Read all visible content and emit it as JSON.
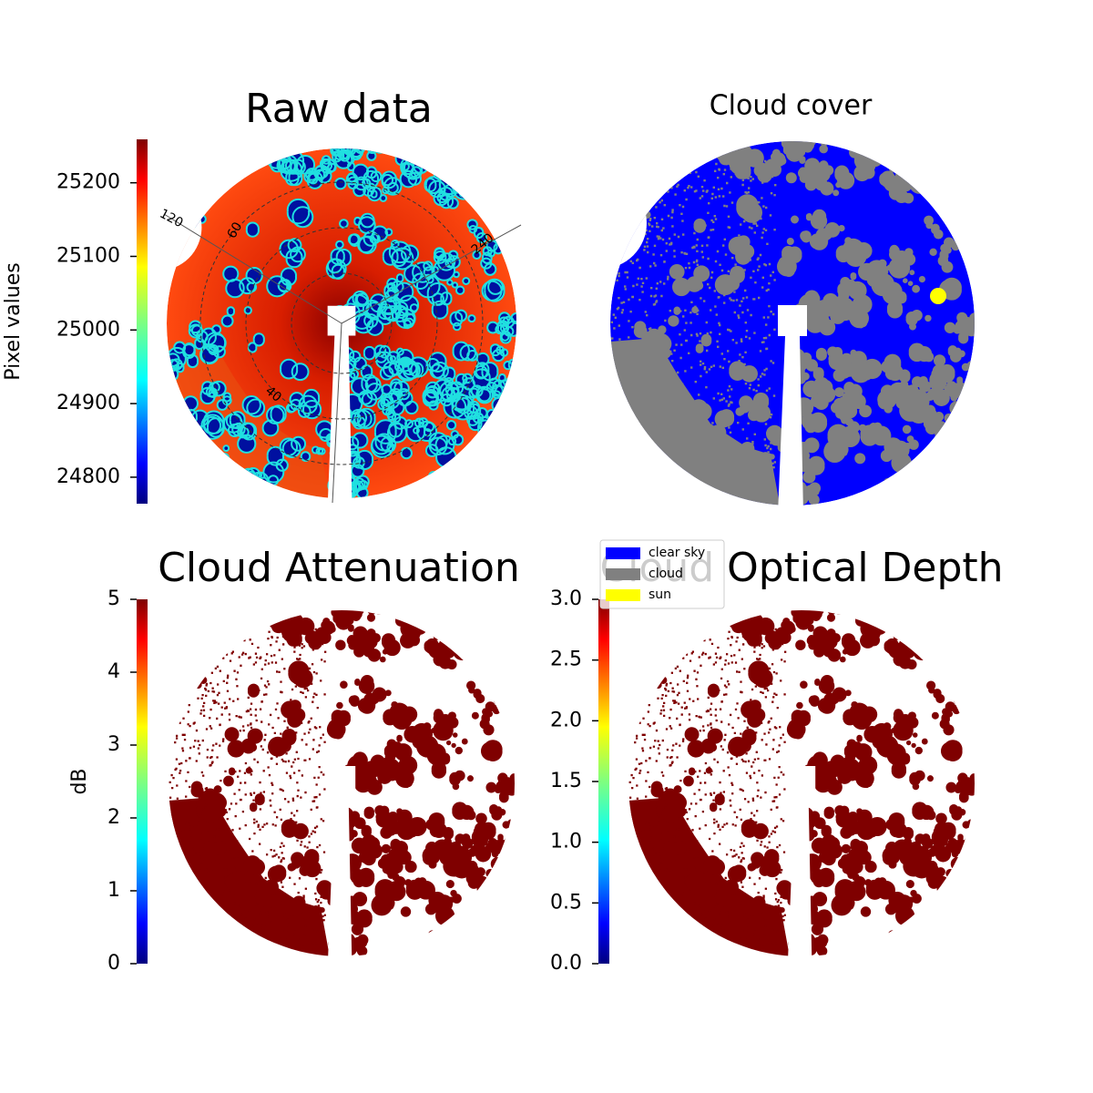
{
  "chart_data": [
    {
      "type": "image",
      "title": "Raw data",
      "colormap": "jet",
      "colorbar": {
        "label": "Pixel values",
        "lim": [
          24764,
          25259
        ],
        "ticks": [
          24800,
          24900,
          25000,
          25100,
          25200
        ]
      },
      "annotations": [
        "120",
        "60",
        "40",
        "240"
      ]
    },
    {
      "type": "image",
      "title": "Cloud cover",
      "legend": [
        {
          "name": "clear sky",
          "color": "#0000ff"
        },
        {
          "name": "cloud",
          "color": "#808080"
        },
        {
          "name": "sun",
          "color": "#ffff00"
        }
      ]
    },
    {
      "type": "image",
      "title": "Cloud Attenuation",
      "colormap": "jet",
      "colorbar": {
        "label": "dB",
        "lim": [
          0,
          5
        ],
        "ticks": [
          0,
          1,
          2,
          3,
          4,
          5
        ]
      }
    },
    {
      "type": "image",
      "title": "Cloud Optical Depth",
      "colormap": "jet",
      "colorbar": {
        "lim": [
          0,
          3
        ],
        "ticks": [
          {
            "value": 0,
            "label": "0.0"
          },
          {
            "value": 0.5,
            "label": "0.5"
          },
          {
            "value": 1,
            "label": "1.0"
          },
          {
            "value": 1.5,
            "label": "1.5"
          },
          {
            "value": 2,
            "label": "2.0"
          },
          {
            "value": 2.5,
            "label": "2.5"
          },
          {
            "value": 3,
            "label": "3.0"
          }
        ]
      }
    }
  ]
}
